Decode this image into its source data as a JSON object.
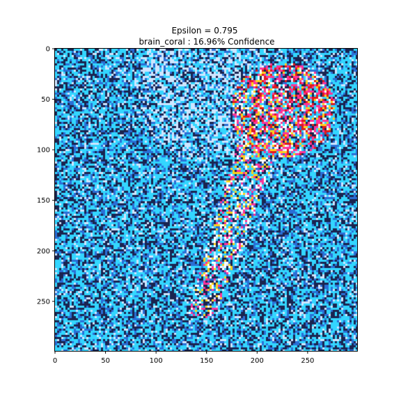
{
  "chart_data": {
    "type": "heatmap",
    "title": "Epsilon = 0.795",
    "subtitle": "brain_coral : 16.96% Confidence",
    "xlabel": "",
    "ylabel": "",
    "xlim": [
      0,
      299
    ],
    "ylim": [
      299,
      0
    ],
    "x_ticks": [
      0,
      50,
      100,
      150,
      200,
      250
    ],
    "y_ticks": [
      0,
      50,
      100,
      150,
      200,
      250
    ],
    "grid": false,
    "colors": {
      "noise_primary": "#33d6ff",
      "noise_dark": "#1a2450",
      "noise_mid": "#2a6fd6",
      "noise_light": "#cfe6ff",
      "highlight_pink": "#ff3399",
      "highlight_red": "#e01a1a",
      "highlight_yellow": "#ffd21a",
      "highlight_white": "#ffffff"
    }
  }
}
